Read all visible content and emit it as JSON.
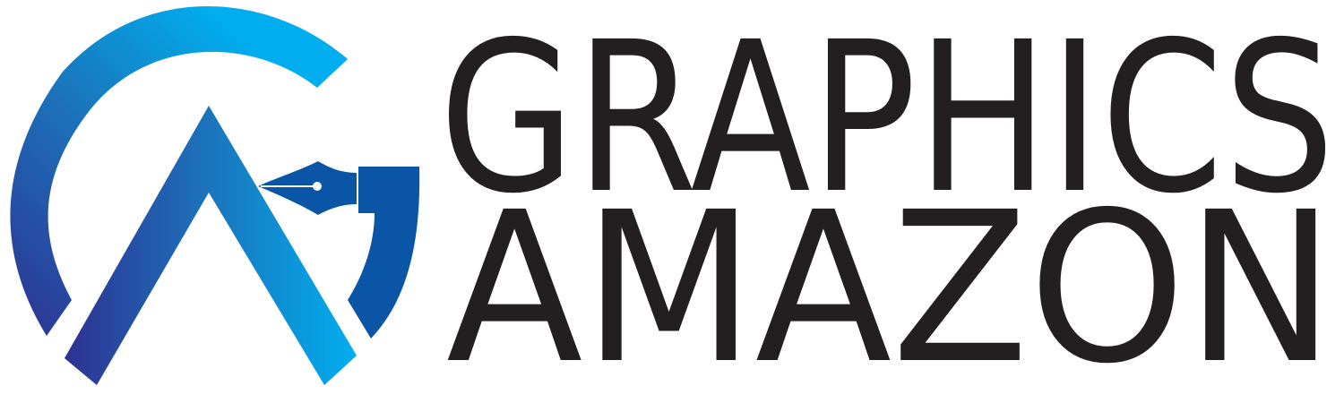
{
  "logo": {
    "line1": "GRAPHICS",
    "line2": "AMAZON",
    "emblem_icon": "letter-g-with-pen-nib-icon",
    "colors": {
      "text": "#231f20",
      "gradient_dark": "#2e3192",
      "gradient_mid": "#1b75bc",
      "gradient_light": "#00aeef",
      "nib_blue": "#0a55a5"
    }
  }
}
